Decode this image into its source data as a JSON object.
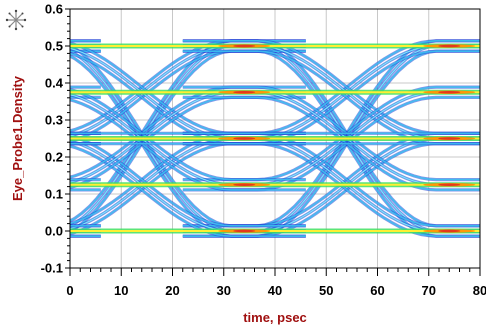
{
  "chart_data": {
    "type": "heatmap",
    "title": "",
    "xlabel": "time, psec",
    "ylabel": "Eye_Probe1.Density",
    "xlim": [
      0,
      80
    ],
    "ylim": [
      -0.1,
      0.6
    ],
    "x_ticks": [
      "0",
      "10",
      "20",
      "30",
      "40",
      "50",
      "60",
      "70",
      "80"
    ],
    "y_ticks": [
      "-0.1",
      "0.0",
      "0.1",
      "0.2",
      "0.3",
      "0.4",
      "0.5",
      "0.6"
    ],
    "grid": true,
    "levels": [
      0.0,
      0.125,
      0.25,
      0.375,
      0.5
    ],
    "unit_interval_ps": 40,
    "eye_crossing_times_ps": [
      14,
      54
    ],
    "trace_groups": [
      {
        "from": 0.0,
        "to": 0.5
      },
      {
        "from": 0.5,
        "to": 0.0
      },
      {
        "from": 0.0,
        "to": 0.25
      },
      {
        "from": 0.25,
        "to": 0.0
      },
      {
        "from": 0.25,
        "to": 0.5
      },
      {
        "from": 0.5,
        "to": 0.25
      },
      {
        "from": 0.125,
        "to": 0.375
      },
      {
        "from": 0.375,
        "to": 0.125
      },
      {
        "from": 0.25,
        "to": 0.25
      }
    ],
    "colormap": [
      "#1f3fd6",
      "#3cc0f0",
      "#9ee8ff",
      "#40e060",
      "#ffee33",
      "#ff8800",
      "#e02020"
    ]
  },
  "colors": {
    "axis_title": "#a01010",
    "grid": "#c8c8c8"
  },
  "icons": {
    "corner": "keysight-starburst-icon"
  }
}
